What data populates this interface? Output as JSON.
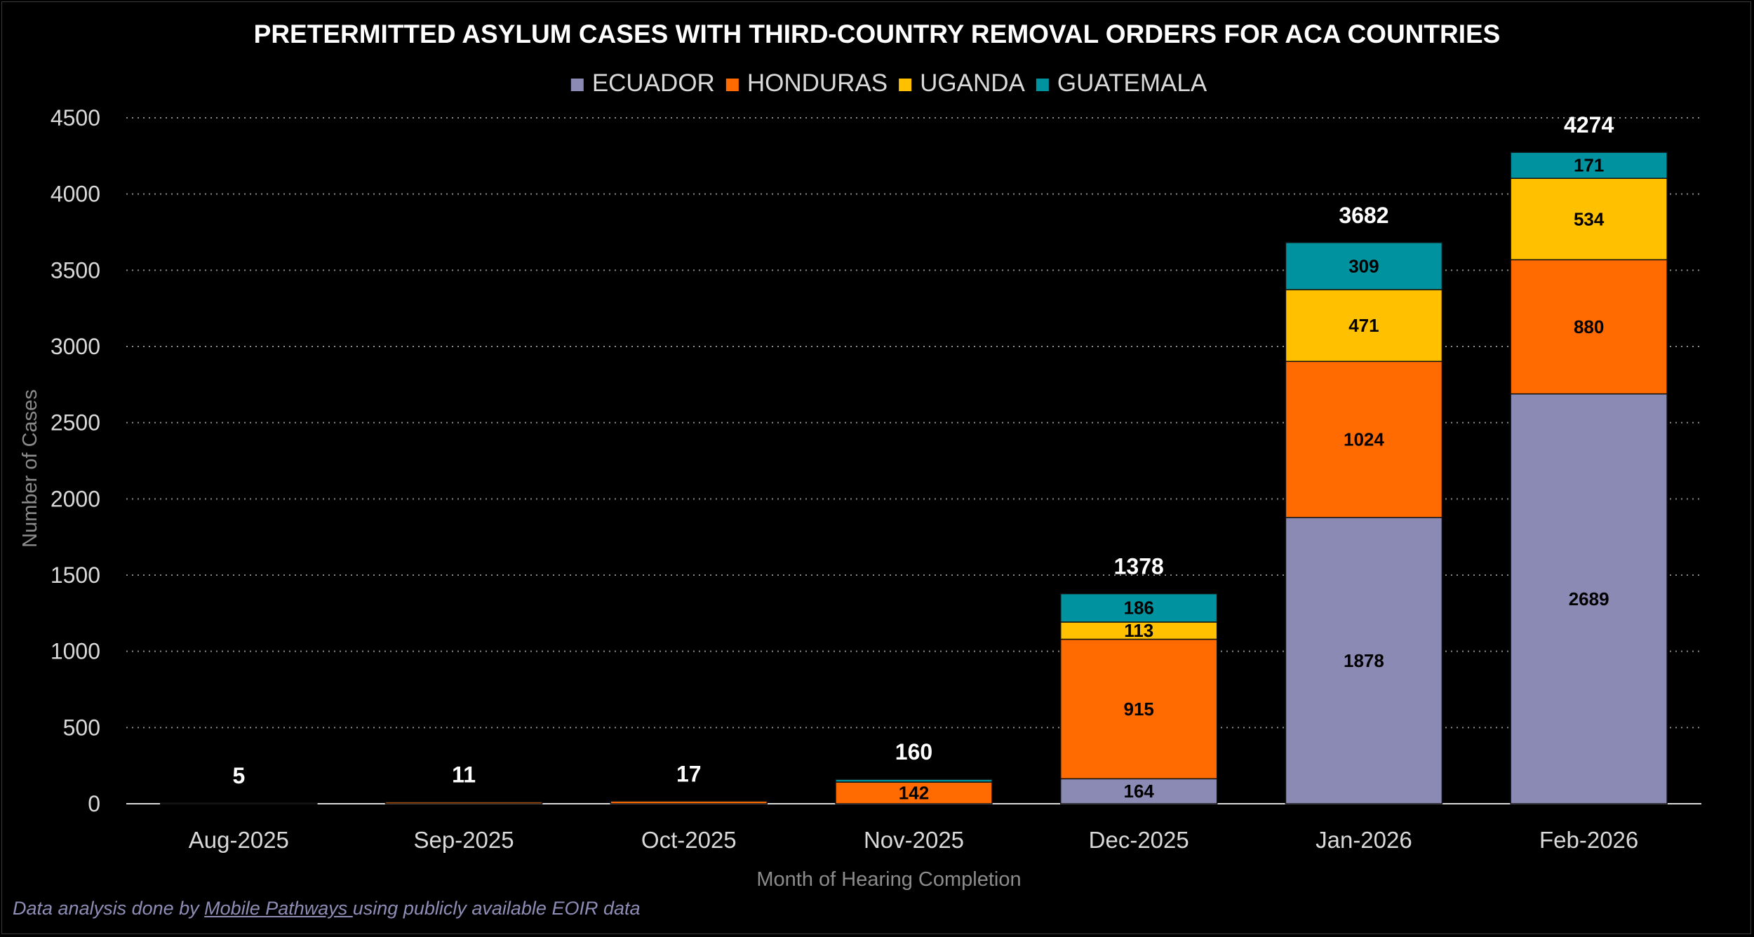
{
  "chart_data": {
    "type": "bar",
    "stacked": true,
    "title": "PRETERMITTED ASYLUM CASES WITH THIRD-COUNTRY REMOVAL ORDERS FOR ACA COUNTRIES",
    "xlabel": "Month of Hearing Completion",
    "ylabel": "Number of Cases",
    "ylim": [
      0,
      4500
    ],
    "yticks": [
      0,
      500,
      1000,
      1500,
      2000,
      2500,
      3000,
      3500,
      4000,
      4500
    ],
    "grid": "horizontal-dotted",
    "legend_position": "top-center",
    "categories": [
      "Aug-2025",
      "Sep-2025",
      "Oct-2025",
      "Nov-2025",
      "Dec-2025",
      "Jan-2026",
      "Feb-2026"
    ],
    "series": [
      {
        "name": "ECUADOR",
        "color": "#8a8ab4",
        "values": [
          0,
          0,
          0,
          0,
          164,
          1878,
          2689
        ],
        "show_labels": [
          false,
          false,
          false,
          false,
          true,
          true,
          true
        ]
      },
      {
        "name": "HONDURAS",
        "color": "#ff6b00",
        "values": [
          5,
          11,
          17,
          142,
          915,
          1024,
          880
        ],
        "show_labels": [
          false,
          false,
          false,
          true,
          true,
          true,
          true
        ]
      },
      {
        "name": "UGANDA",
        "color": "#ffc000",
        "values": [
          0,
          0,
          0,
          0,
          113,
          471,
          534
        ],
        "show_labels": [
          false,
          false,
          false,
          false,
          true,
          true,
          true
        ]
      },
      {
        "name": "GUATEMALA",
        "color": "#00929e",
        "values": [
          0,
          0,
          0,
          18,
          186,
          309,
          171
        ],
        "show_labels": [
          false,
          false,
          false,
          false,
          true,
          true,
          true
        ]
      }
    ],
    "totals": [
      5,
      11,
      17,
      160,
      1378,
      3682,
      4274
    ]
  },
  "footer": {
    "prefix": "Data analysis done by ",
    "link_text": "Mobile Pathways ",
    "suffix": "using publicly available EOIR data"
  }
}
